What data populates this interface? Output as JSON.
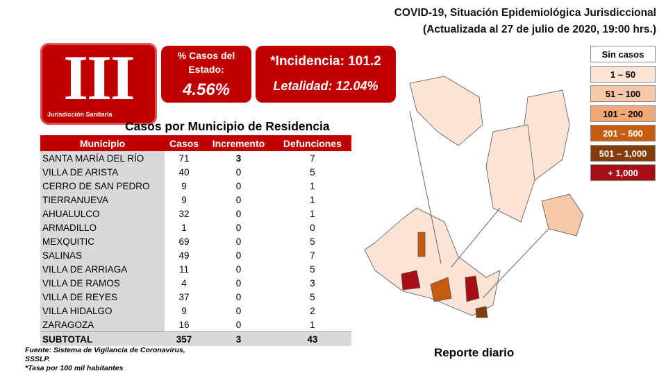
{
  "header": {
    "title_line1": "COVID-19, Situación Epidemiológica Jurisdiccional",
    "title_line2": "(Actualizada al 27 de julio de 2020, 19:00 hrs.)"
  },
  "badge": {
    "numeral": "III",
    "label": "Jurisdicción Sanitaria"
  },
  "state_share": {
    "label": "% Casos del Estado:",
    "value": "4.56%"
  },
  "rates": {
    "incidence": "*Incidencia: 101.2",
    "lethality": "Letalidad: 12.04%"
  },
  "table": {
    "title": "Casos por Municipio  de Residencia",
    "headers": [
      "Municipio",
      "Casos",
      "Incremento",
      "Defunciones"
    ],
    "rows": [
      [
        "SANTA MARÍA DEL RÍO",
        71,
        3,
        7
      ],
      [
        "VILLA DE ARISTA",
        40,
        0,
        5
      ],
      [
        "CERRO DE SAN PEDRO",
        9,
        0,
        1
      ],
      [
        "TIERRANUEVA",
        9,
        0,
        1
      ],
      [
        "AHUALULCO",
        32,
        0,
        1
      ],
      [
        "ARMADILLO",
        1,
        0,
        0
      ],
      [
        "MEXQUITIC",
        69,
        0,
        5
      ],
      [
        "SALINAS",
        49,
        0,
        7
      ],
      [
        "VILLA DE ARRIAGA",
        11,
        0,
        5
      ],
      [
        "VILLA DE RAMOS",
        4,
        0,
        3
      ],
      [
        "VILLA DE REYES",
        37,
        0,
        5
      ],
      [
        "VILLA HIDALGO",
        9,
        0,
        2
      ],
      [
        "ZARAGOZA",
        16,
        0,
        1
      ]
    ],
    "subtotal": [
      "SUBTOTAL",
      357,
      3,
      43
    ]
  },
  "legend": [
    "Sin casos",
    "1 – 50",
    "51 – 100",
    "101 – 200",
    "201 – 500",
    "501 – 1,000",
    "+ 1,000"
  ],
  "footer": {
    "source_line1": "Fuente: Sistema de Vigilancia  de Coronavirus,",
    "source_line2": "SSSLP.",
    "note": "*Tasa por 100 mil habitantes",
    "report": "Reporte diario"
  }
}
